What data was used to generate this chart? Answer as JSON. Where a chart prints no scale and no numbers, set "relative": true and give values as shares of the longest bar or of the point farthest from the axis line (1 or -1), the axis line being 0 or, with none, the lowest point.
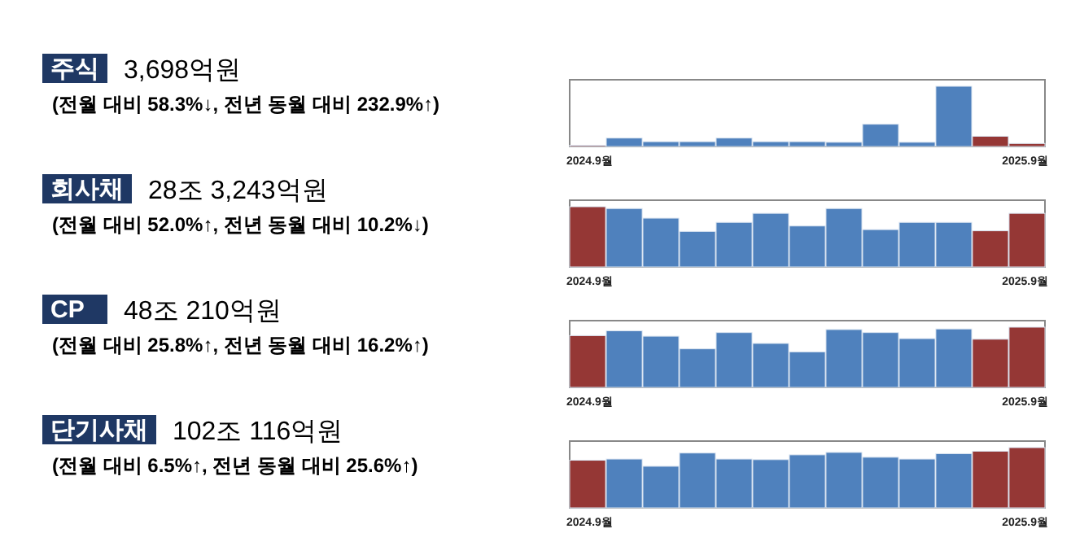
{
  "chart_data": [
    {
      "type": "bar",
      "annotations": [
        "주식",
        "3,698억원",
        "(전월 대비 58.3%↓, 전년 동월 대비 232.9%↑)"
      ],
      "categories": [
        "2024.9월",
        null,
        null,
        null,
        null,
        null,
        null,
        null,
        null,
        null,
        null,
        null,
        "2025.9월"
      ],
      "relative": true,
      "values": [
        0.02,
        0.14,
        0.08,
        0.08,
        0.14,
        0.08,
        0.08,
        0.07,
        0.37,
        0.07,
        1,
        0.17,
        0.05
      ],
      "colors": [
        "#953735",
        "#4f81bd",
        "#4f81bd",
        "#4f81bd",
        "#4f81bd",
        "#4f81bd",
        "#4f81bd",
        "#4f81bd",
        "#4f81bd",
        "#4f81bd",
        "#4f81bd",
        "#953735",
        "#953735"
      ]
    },
    {
      "type": "bar",
      "annotations": [
        "회사채",
        "28조 3,243억원",
        "(전월 대비 52.0%↑, 전년 동월 대비 10.2%↓)"
      ],
      "categories": [
        "2024.9월",
        null,
        null,
        null,
        null,
        null,
        null,
        null,
        null,
        null,
        null,
        null,
        "2025.9월"
      ],
      "relative": true,
      "values": [
        1,
        0.97,
        0.81,
        0.59,
        0.74,
        0.89,
        0.68,
        0.97,
        0.62,
        0.74,
        0.74,
        0.6,
        0.89
      ],
      "colors": [
        "#953735",
        "#4f81bd",
        "#4f81bd",
        "#4f81bd",
        "#4f81bd",
        "#4f81bd",
        "#4f81bd",
        "#4f81bd",
        "#4f81bd",
        "#4f81bd",
        "#4f81bd",
        "#953735",
        "#953735"
      ]
    },
    {
      "type": "bar",
      "annotations": [
        "CP",
        "48조 210억원",
        "(전월 대비 25.8%↑, 전년 동월 대비 16.2%↑)"
      ],
      "categories": [
        "2024.9월",
        null,
        null,
        null,
        null,
        null,
        null,
        null,
        null,
        null,
        null,
        null,
        "2025.9월"
      ],
      "relative": true,
      "values": [
        0.86,
        0.94,
        0.85,
        0.64,
        0.91,
        0.73,
        0.59,
        0.96,
        0.91,
        0.81,
        0.97,
        0.8,
        1
      ],
      "colors": [
        "#953735",
        "#4f81bd",
        "#4f81bd",
        "#4f81bd",
        "#4f81bd",
        "#4f81bd",
        "#4f81bd",
        "#4f81bd",
        "#4f81bd",
        "#4f81bd",
        "#4f81bd",
        "#953735",
        "#953735"
      ]
    },
    {
      "type": "bar",
      "annotations": [
        "단기사채",
        "102조 116억원",
        "(전월 대비 6.5%↑, 전년 동월 대비 25.6%↑)"
      ],
      "categories": [
        "2024.9월",
        null,
        null,
        null,
        null,
        null,
        null,
        null,
        null,
        null,
        null,
        null,
        "2025.9월"
      ],
      "relative": true,
      "values": [
        0.79,
        0.81,
        0.69,
        0.91,
        0.81,
        0.8,
        0.88,
        0.92,
        0.84,
        0.81,
        0.9,
        0.94,
        1
      ],
      "colors": [
        "#953735",
        "#4f81bd",
        "#4f81bd",
        "#4f81bd",
        "#4f81bd",
        "#4f81bd",
        "#4f81bd",
        "#4f81bd",
        "#4f81bd",
        "#4f81bd",
        "#4f81bd",
        "#953735",
        "#953735"
      ]
    }
  ]
}
